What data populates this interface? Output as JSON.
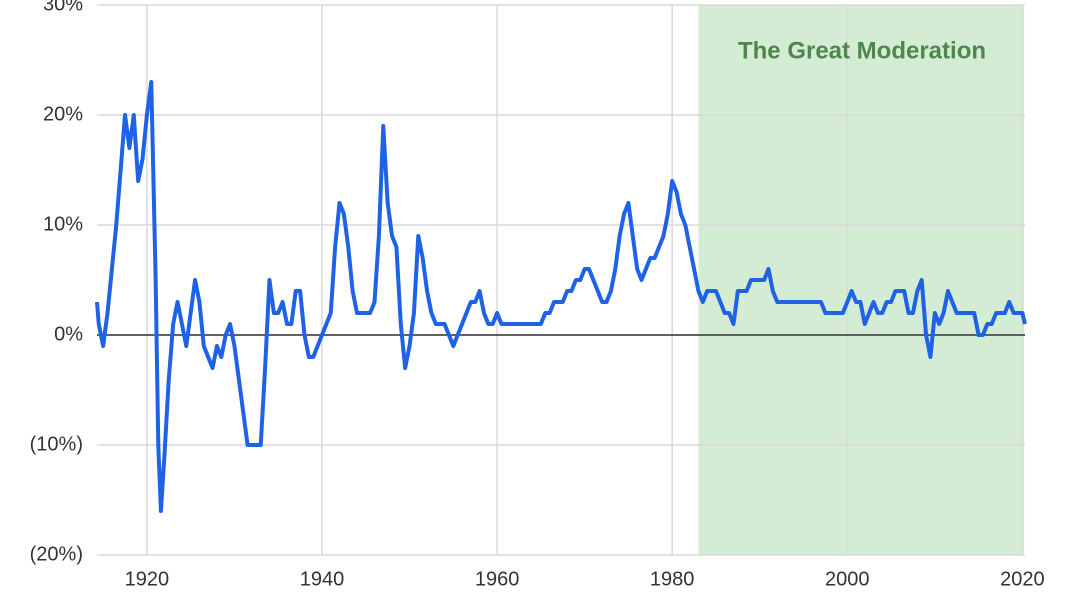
{
  "chart_data": {
    "type": "line",
    "color": "#1f62e6",
    "grid": true,
    "xlim": [
      1914.3,
      2020.3
    ],
    "xticks": [
      1920,
      1940,
      1960,
      1980,
      2000,
      2020
    ],
    "ylim": [
      -20,
      30
    ],
    "yticks": [
      {
        "value": -20,
        "label": "(20%)"
      },
      {
        "value": -10,
        "label": "(10%)"
      },
      {
        "value": 0,
        "label": "0%"
      },
      {
        "value": 10,
        "label": "10%"
      },
      {
        "value": 20,
        "label": "20%"
      },
      {
        "value": 30,
        "label": "30%"
      }
    ],
    "shaded_region": {
      "x": [
        1983,
        2020.2
      ],
      "label": "The Great Moderation",
      "color": "#d4ecd3",
      "label_color": "#4e864e"
    },
    "x": [
      1914.3,
      1914.5,
      1915,
      1915.5,
      1916,
      1916.5,
      1917,
      1917.5,
      1918,
      1918.5,
      1919,
      1919.5,
      1920,
      1920.5,
      1921,
      1921.3,
      1921.6,
      1922,
      1922.5,
      1923,
      1923.5,
      1924,
      1924.5,
      1925,
      1925.5,
      1926,
      1926.5,
      1927,
      1927.5,
      1928,
      1928.5,
      1929,
      1929.5,
      1930,
      1930.5,
      1931,
      1931.5,
      1932,
      1932.5,
      1933,
      1933.5,
      1934,
      1934.5,
      1935,
      1935.5,
      1936,
      1936.5,
      1937,
      1937.5,
      1938,
      1938.5,
      1939,
      1939.5,
      1940,
      1940.5,
      1941,
      1941.5,
      1942,
      1942.5,
      1943,
      1943.5,
      1944,
      1944.5,
      1945,
      1945.5,
      1946,
      1946.5,
      1947,
      1947.5,
      1948,
      1948.5,
      1949,
      1949.5,
      1950,
      1950.5,
      1951,
      1951.5,
      1952,
      1952.5,
      1953,
      1953.5,
      1954,
      1954.5,
      1955,
      1955.5,
      1956,
      1956.5,
      1957,
      1957.5,
      1958,
      1958.5,
      1959,
      1959.5,
      1960,
      1960.5,
      1961,
      1961.5,
      1962,
      1962.5,
      1963,
      1963.5,
      1964,
      1964.5,
      1965,
      1965.5,
      1966,
      1966.5,
      1967,
      1967.5,
      1968,
      1968.5,
      1969,
      1969.5,
      1970,
      1970.5,
      1971,
      1971.5,
      1972,
      1972.5,
      1973,
      1973.5,
      1974,
      1974.5,
      1975,
      1975.5,
      1976,
      1976.5,
      1977,
      1977.5,
      1978,
      1978.5,
      1979,
      1979.5,
      1980,
      1980.5,
      1981,
      1981.5,
      1982,
      1982.5,
      1983,
      1983.5,
      1984,
      1984.5,
      1985,
      1985.5,
      1986,
      1986.5,
      1987,
      1987.5,
      1988,
      1988.5,
      1989,
      1989.5,
      1990,
      1990.5,
      1991,
      1991.5,
      1992,
      1992.5,
      1993,
      1993.5,
      1994,
      1994.5,
      1995,
      1995.5,
      1996,
      1996.5,
      1997,
      1997.5,
      1998,
      1998.5,
      1999,
      1999.5,
      2000,
      2000.5,
      2001,
      2001.5,
      2002,
      2002.5,
      2003,
      2003.5,
      2004,
      2004.5,
      2005,
      2005.5,
      2006,
      2006.5,
      2007,
      2007.5,
      2008,
      2008.5,
      2009,
      2009.5,
      2010,
      2010.5,
      2011,
      2011.5,
      2012,
      2012.5,
      2013,
      2013.5,
      2014,
      2014.5,
      2015,
      2015.5,
      2016,
      2016.5,
      2017,
      2017.5,
      2018,
      2018.5,
      2019,
      2019.5,
      2020,
      2020.3
    ],
    "values": [
      3,
      1,
      -1,
      2,
      6,
      10,
      15,
      20,
      17,
      20,
      14,
      16,
      20,
      23,
      5,
      -10,
      -16,
      -11,
      -4,
      1,
      3,
      1,
      -1,
      2,
      5,
      3,
      -1,
      -2,
      -3,
      -1,
      -2,
      0,
      1,
      -1,
      -4,
      -7,
      -10,
      -10,
      -10,
      -10,
      -3,
      5,
      2,
      2,
      3,
      1,
      1,
      4,
      4,
      0,
      -2,
      -2,
      -1,
      0,
      1,
      2,
      8,
      12,
      11,
      8,
      4,
      2,
      2,
      2,
      2,
      3,
      9,
      19,
      12,
      9,
      8,
      1,
      -3,
      -1,
      2,
      9,
      7,
      4,
      2,
      1,
      1,
      1,
      0,
      -1,
      0,
      1,
      2,
      3,
      3,
      4,
      2,
      1,
      1,
      2,
      1,
      1,
      1,
      1,
      1,
      1,
      1,
      1,
      1,
      1,
      2,
      2,
      3,
      3,
      3,
      4,
      4,
      5,
      5,
      6,
      6,
      5,
      4,
      3,
      3,
      4,
      6,
      9,
      11,
      12,
      9,
      6,
      5,
      6,
      7,
      7,
      8,
      9,
      11,
      14,
      13,
      11,
      10,
      8,
      6,
      4,
      3,
      4,
      4,
      4,
      3,
      2,
      2,
      1,
      4,
      4,
      4,
      5,
      5,
      5,
      5,
      6,
      4,
      3,
      3,
      3,
      3,
      3,
      3,
      3,
      3,
      3,
      3,
      3,
      2,
      2,
      2,
      2,
      2,
      3,
      4,
      3,
      3,
      1,
      2,
      3,
      2,
      2,
      3,
      3,
      4,
      4,
      4,
      2,
      2,
      4,
      5,
      0,
      -2,
      2,
      1,
      2,
      4,
      3,
      2,
      2,
      2,
      2,
      2,
      0,
      0,
      1,
      1,
      2,
      2,
      2,
      3,
      2,
      2,
      2,
      1
    ]
  }
}
